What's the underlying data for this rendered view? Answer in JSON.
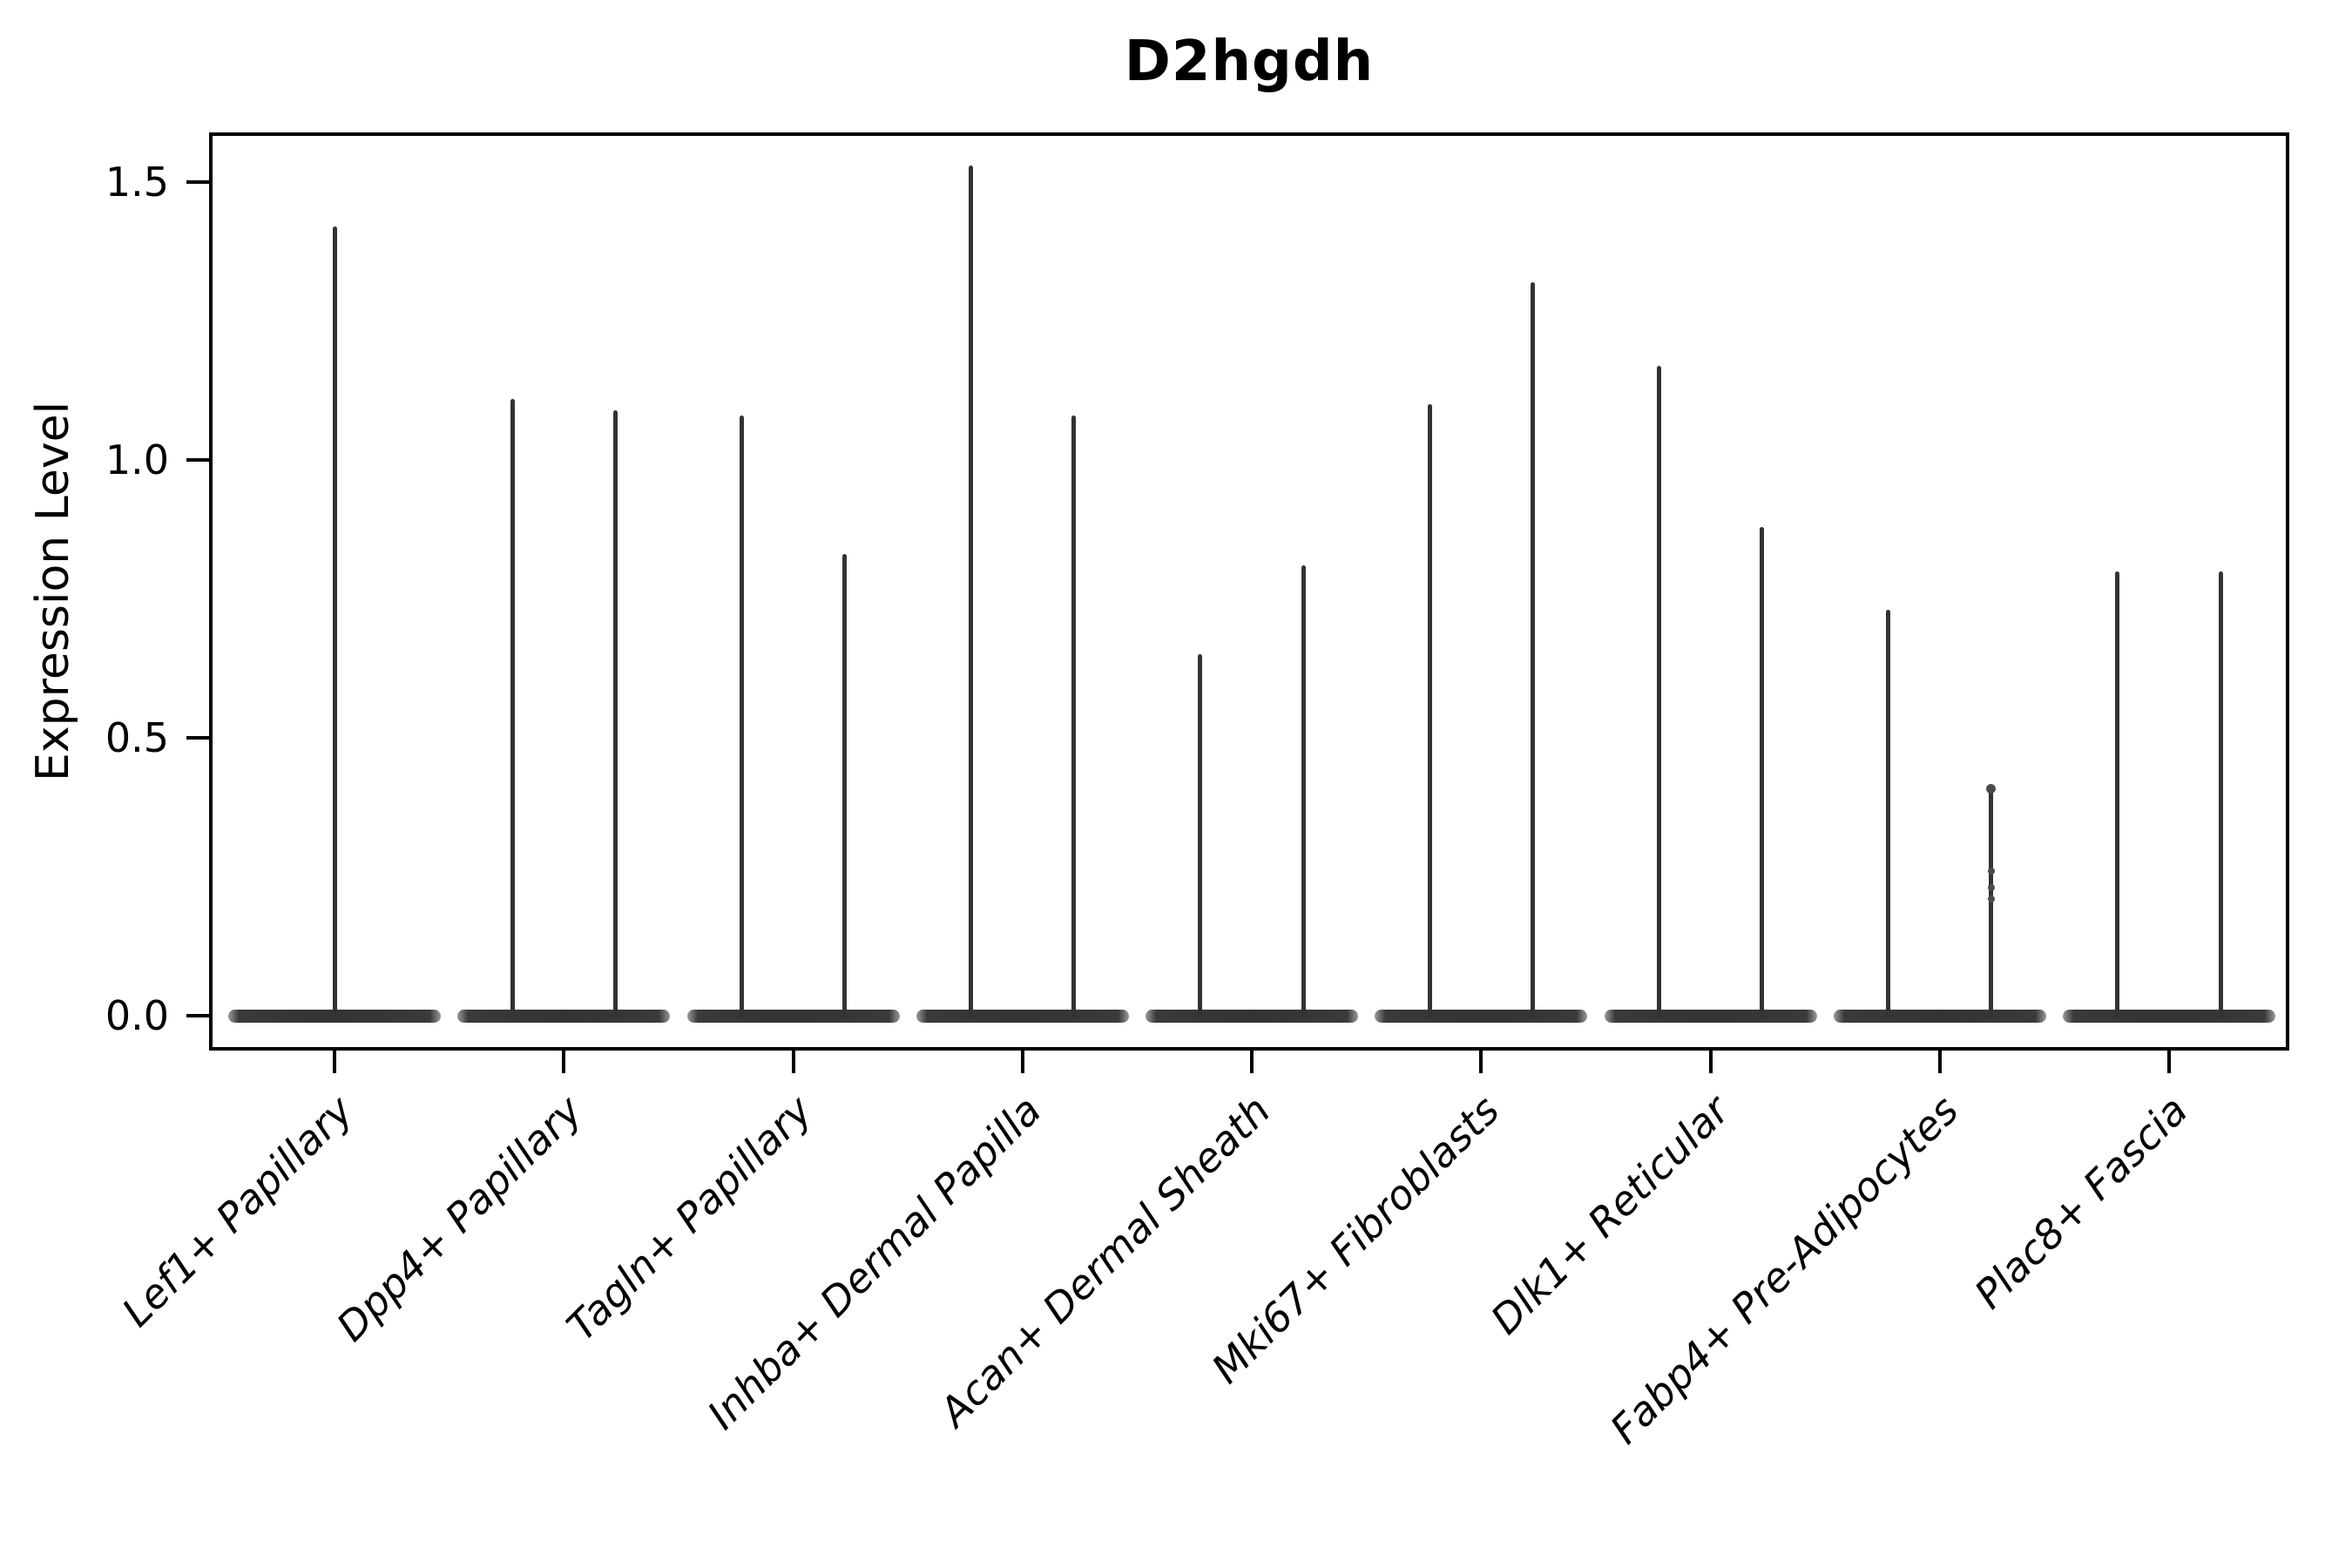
{
  "chart_data": {
    "type": "violin",
    "title": "D2hgdh",
    "xlabel": "",
    "ylabel": "Expression Level",
    "ylim": [
      -0.06,
      1.59
    ],
    "yticks": [
      0.0,
      0.5,
      1.0,
      1.5
    ],
    "ytick_labels": [
      "0.0",
      "0.5",
      "1.0",
      "1.5"
    ],
    "grid": false,
    "legend": "none",
    "violin_style": "flat zero-density disc at y=0 with thin spikes reaching each group maximum",
    "violin_color": "#333333",
    "violin_tip_color": "#9a9a9a",
    "categories": [
      {
        "label": "Lef1+ Papillary",
        "spikes": [
          {
            "offset": 0,
            "max": 1.42
          }
        ]
      },
      {
        "label": "Dpp4+ Papillary",
        "spikes": [
          {
            "offset": -0.225,
            "max": 1.11
          },
          {
            "offset": 0.225,
            "max": 1.09
          }
        ]
      },
      {
        "label": "Tagln+ Papillary",
        "spikes": [
          {
            "offset": -0.225,
            "max": 1.08
          },
          {
            "offset": 0.225,
            "max": 0.83
          }
        ]
      },
      {
        "label": "Inhba+ Dermal Papilla",
        "spikes": [
          {
            "offset": -0.225,
            "max": 1.53
          },
          {
            "offset": 0.225,
            "max": 1.08
          }
        ]
      },
      {
        "label": "Acan+ Dermal Sheath",
        "spikes": [
          {
            "offset": -0.225,
            "max": 0.65
          },
          {
            "offset": 0.225,
            "max": 0.81
          }
        ]
      },
      {
        "label": "Mki67+ Fibroblasts",
        "spikes": [
          {
            "offset": -0.225,
            "max": 1.1
          },
          {
            "offset": 0.225,
            "max": 1.32
          }
        ]
      },
      {
        "label": "Dlk1+ Reticular",
        "spikes": [
          {
            "offset": -0.225,
            "max": 1.17
          },
          {
            "offset": 0.225,
            "max": 0.88
          }
        ]
      },
      {
        "label": "Fabp4+ Pre-Adipocytes",
        "spikes": [
          {
            "offset": -0.225,
            "max": 0.73
          },
          {
            "offset": 0.225,
            "max": 0.41,
            "points": [
              0.26,
              0.23,
              0.21
            ]
          }
        ]
      },
      {
        "label": "Plac8+ Fascia",
        "spikes": [
          {
            "offset": -0.225,
            "max": 0.8
          },
          {
            "offset": 0.225,
            "max": 0.8
          }
        ]
      }
    ]
  }
}
